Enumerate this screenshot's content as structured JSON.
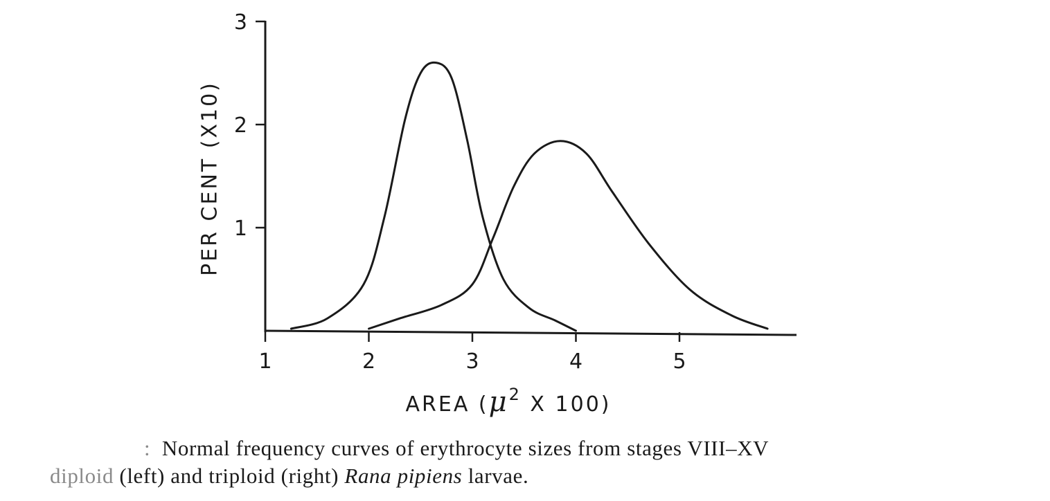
{
  "chart_data": {
    "type": "line",
    "xlabel": "AREA (μ² X 100)",
    "xlabel_parts": {
      "pre": "AREA (",
      "mu": "μ",
      "sup": "2",
      "post": " X 100)"
    },
    "ylabel": "PER CENT (X10)",
    "xlim": [
      1,
      6.1
    ],
    "ylim": [
      0,
      3
    ],
    "x_ticks": [
      1,
      2,
      3,
      4,
      5
    ],
    "y_ticks": [
      1,
      2,
      3
    ],
    "grid": false,
    "legend": "none",
    "series": [
      {
        "x": [
          1.25,
          1.6,
          1.95,
          2.15,
          2.35,
          2.5,
          2.65,
          2.8,
          2.95,
          3.1,
          3.3,
          3.55,
          3.8,
          4.0
        ],
        "y": [
          0.02,
          0.12,
          0.45,
          1.1,
          2.05,
          2.5,
          2.6,
          2.45,
          1.85,
          1.1,
          0.5,
          0.22,
          0.1,
          0.0
        ]
      },
      {
        "x": [
          2.0,
          2.3,
          2.7,
          3.0,
          3.2,
          3.4,
          3.6,
          3.85,
          4.1,
          4.35,
          4.7,
          5.1,
          5.5,
          5.85
        ],
        "y": [
          0.02,
          0.12,
          0.25,
          0.45,
          0.9,
          1.4,
          1.72,
          1.84,
          1.72,
          1.35,
          0.85,
          0.4,
          0.15,
          0.02
        ]
      }
    ]
  },
  "caption": {
    "lead": ":",
    "line1_text": "Normal frequency curves of erythrocyte sizes from stages VIII–XV",
    "line2_a": "diploid",
    "line2_b": "(left) and triploid (right)",
    "line2_c": "Rana pipiens",
    "line2_d": "larvae."
  }
}
